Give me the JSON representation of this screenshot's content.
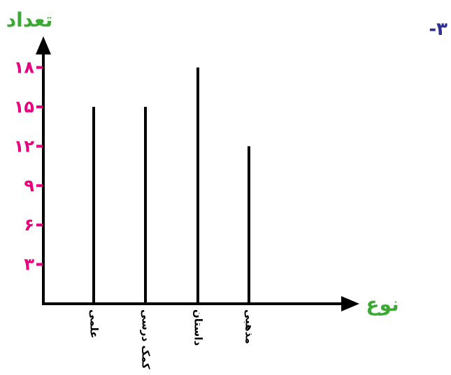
{
  "question_number": "-۳",
  "chart_data": {
    "type": "bar",
    "ylabel": "تعداد",
    "xlabel": "نوع",
    "categories": [
      "علمی",
      "کمک درسی",
      "داستان",
      "مذهبی"
    ],
    "values": [
      15,
      15,
      18,
      12
    ],
    "yticks": [
      3,
      6,
      9,
      12,
      15,
      18
    ],
    "ytick_labels": [
      "۳",
      "۶",
      "۹",
      "۱۲",
      "۱۵",
      "۱۸"
    ],
    "ylim": [
      0,
      18
    ],
    "grid": false
  },
  "colors": {
    "axis": "#000000",
    "bars": "#000000",
    "axis_title": "#3aaa35",
    "tick_labels": "#e6007e",
    "question_number": "#2e3192"
  }
}
